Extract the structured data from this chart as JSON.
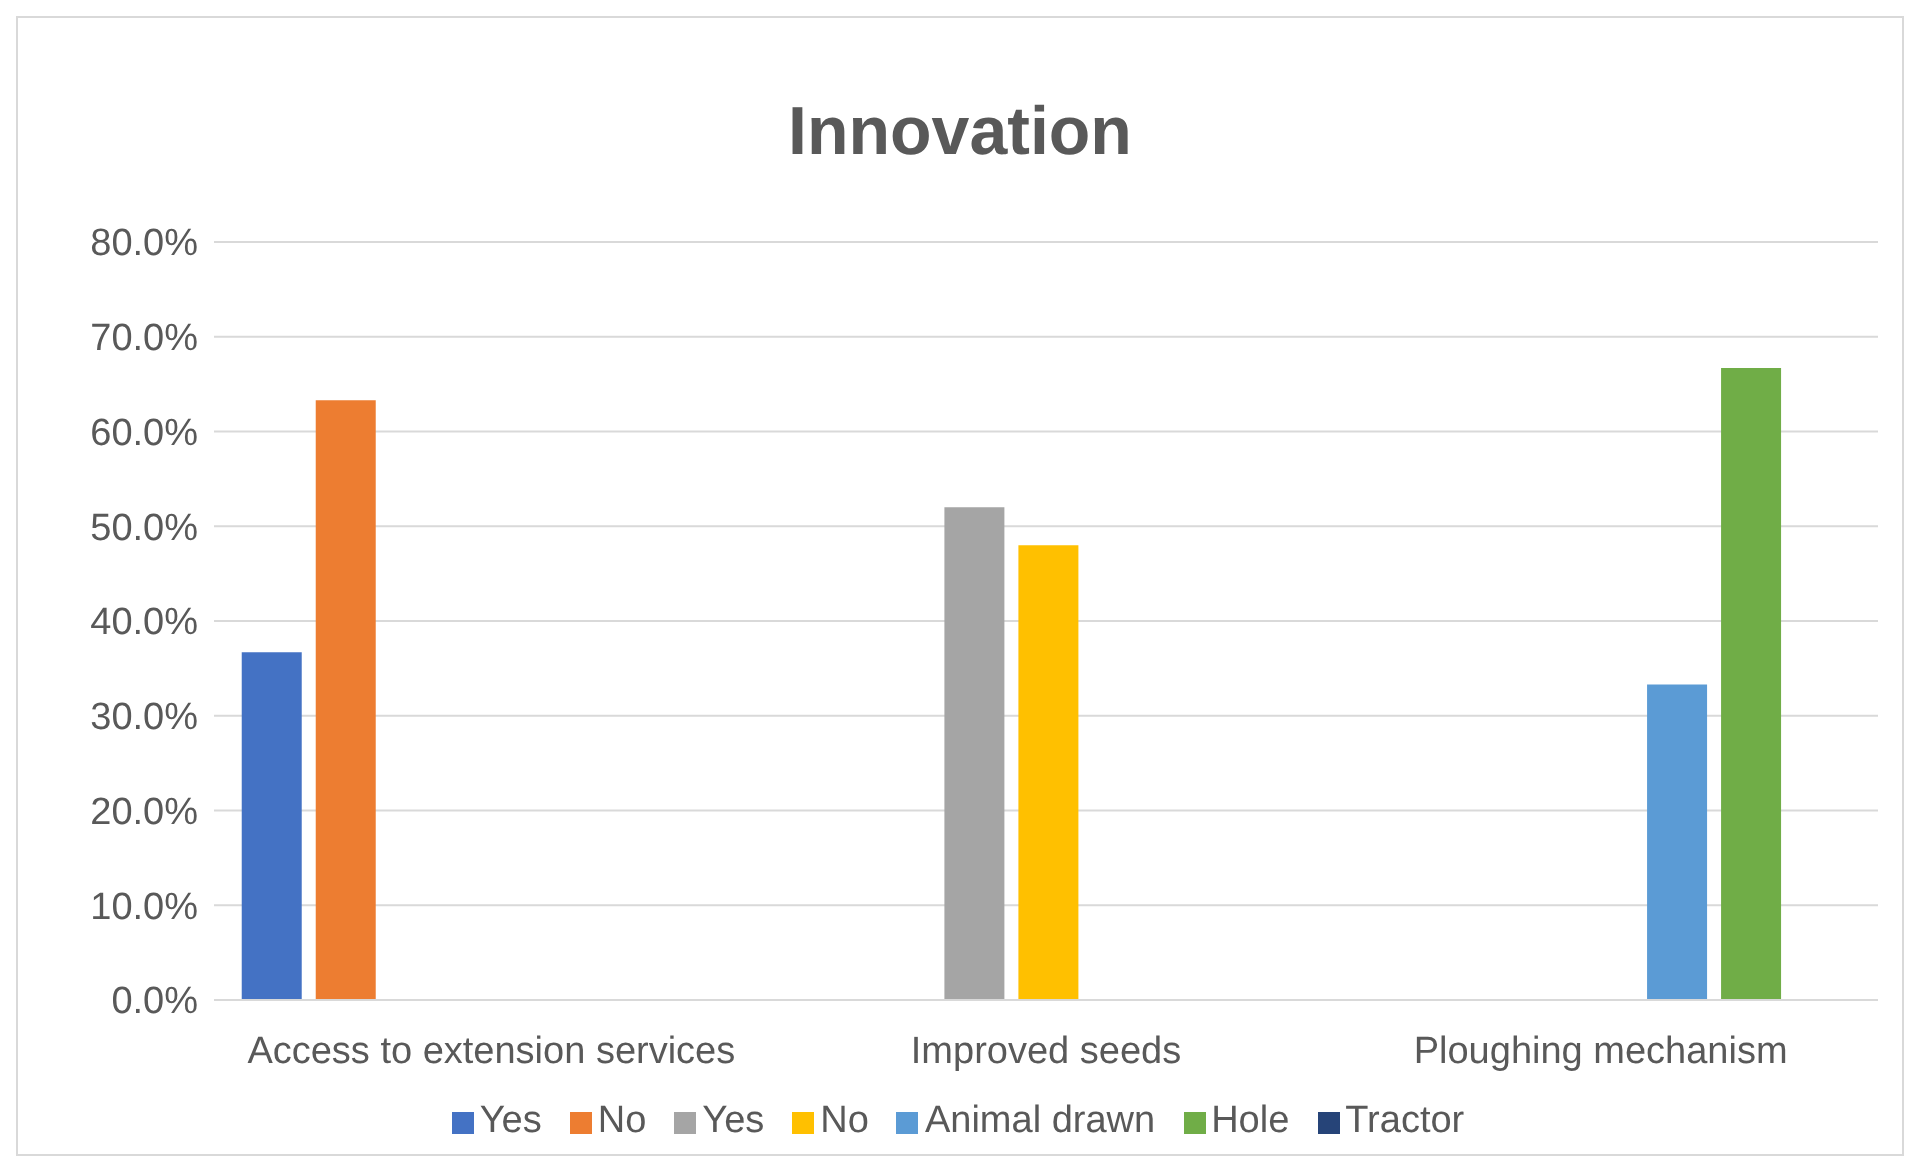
{
  "chart_data": {
    "type": "bar",
    "title": "Innovation",
    "categories": [
      "Access to extension services",
      "Improved seeds",
      "Ploughing mechanism"
    ],
    "series": [
      {
        "name": "Yes",
        "color": "#4472c4",
        "values": [
          36.7,
          null,
          null
        ]
      },
      {
        "name": "No",
        "color": "#ed7d31",
        "values": [
          63.3,
          null,
          null
        ]
      },
      {
        "name": "Yes",
        "color": "#a5a5a5",
        "values": [
          null,
          52.0,
          null
        ]
      },
      {
        "name": "No",
        "color": "#ffc000",
        "values": [
          null,
          48.0,
          null
        ]
      },
      {
        "name": "Animal drawn",
        "color": "#5b9bd5",
        "values": [
          null,
          null,
          33.3
        ]
      },
      {
        "name": "Hole",
        "color": "#70ad47",
        "values": [
          null,
          null,
          66.7
        ]
      },
      {
        "name": "Tractor",
        "color": "#264478",
        "values": [
          null,
          null,
          0
        ]
      }
    ],
    "ylim": [
      0,
      80
    ],
    "yticks": [
      {
        "value": 0,
        "label": "0.0%"
      },
      {
        "value": 10,
        "label": "10.0%"
      },
      {
        "value": 20,
        "label": "20.0%"
      },
      {
        "value": 30,
        "label": "30.0%"
      },
      {
        "value": 40,
        "label": "40.0%"
      },
      {
        "value": 50,
        "label": "50.0%"
      },
      {
        "value": 60,
        "label": "60.0%"
      },
      {
        "value": 70,
        "label": "70.0%"
      },
      {
        "value": 80,
        "label": "80.0%"
      }
    ],
    "grid": "y",
    "legend": "bottom"
  }
}
